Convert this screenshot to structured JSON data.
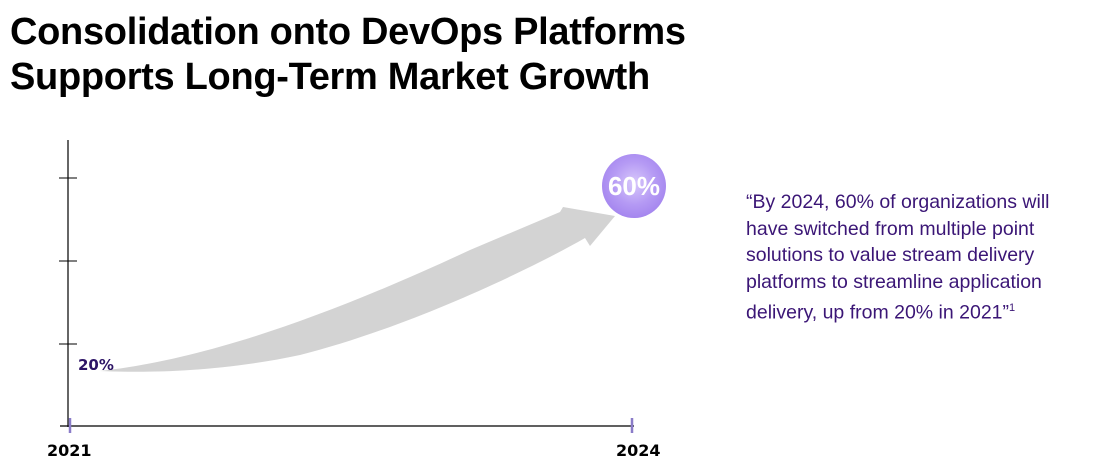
{
  "title": {
    "line1": "Consolidation onto DevOps Platforms",
    "line2": "Supports Long-Term Market Growth"
  },
  "chart_data": {
    "type": "line",
    "categories": [
      "2021",
      "2024"
    ],
    "values": [
      20,
      60
    ],
    "value_labels": [
      "20%",
      "60%"
    ],
    "grid": false,
    "colors": {
      "arrow": "#d3d3d3",
      "bubble": "#a587f0",
      "axis_ticks": "#8a7cc8",
      "label": "#2d1466"
    }
  },
  "quote": {
    "text": "“By 2024, 60% of organizations will have switched from multiple point solutions to value stream delivery platforms to streamline application delivery, up from 20% in 2021”",
    "footnote": "1"
  }
}
